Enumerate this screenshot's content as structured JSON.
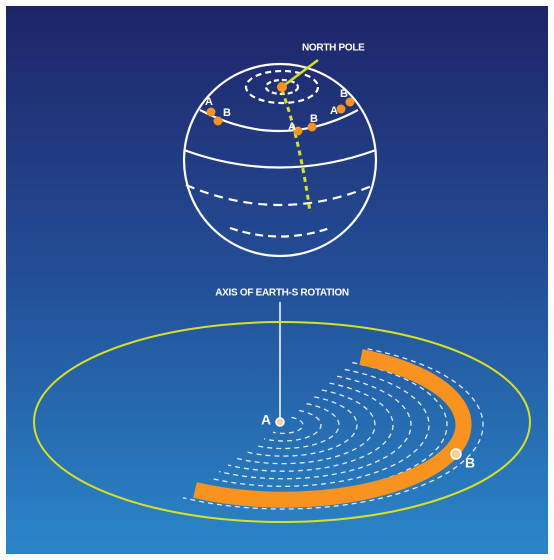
{
  "diagram": {
    "globe": {
      "north_pole_label": "NORTH POLE",
      "labels": [
        "A",
        "B",
        "A",
        "B",
        "B",
        "A"
      ]
    },
    "disk": {
      "axis_label": "AXIS OF EARTH-S ROTATION",
      "point_a": "A",
      "point_b": "B"
    }
  }
}
